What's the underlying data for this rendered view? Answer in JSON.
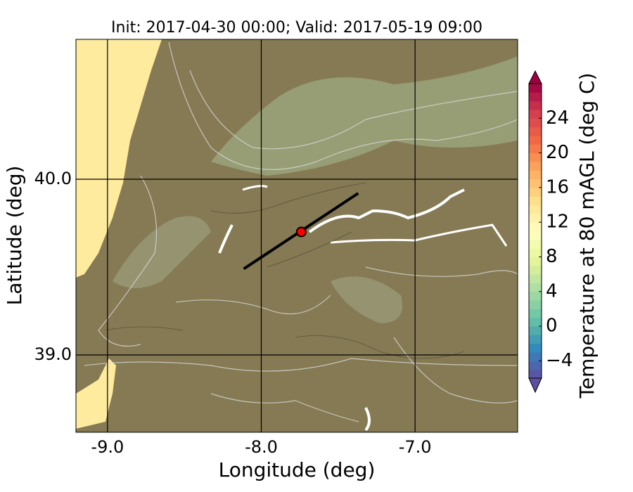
{
  "chart_data": {
    "type": "map",
    "title": "Init: 2017-04-30 00:00; Valid: 2017-05-19 09:00",
    "xlabel": "Longitude (deg)",
    "ylabel": "Latitude (deg)",
    "xlim": [
      -9.205,
      -6.333
    ],
    "ylim": [
      38.56,
      40.796
    ],
    "xticks": [
      {
        "value": -9,
        "label": "-9.0"
      },
      {
        "value": -8,
        "label": "-8.0"
      },
      {
        "value": -7,
        "label": "-7.0"
      }
    ],
    "yticks": [
      {
        "value": 39,
        "label": "39.0"
      },
      {
        "value": 40,
        "label": "40.0"
      }
    ],
    "grid": true,
    "transect": {
      "color": "#000000",
      "lon": [
        -8.114,
        -7.37
      ],
      "lat": [
        39.49,
        39.92
      ]
    },
    "point": {
      "color": "#ff0000",
      "lon": -7.74,
      "lat": 39.7
    },
    "colorbar": {
      "label": "Temperature at 80 mAGL (deg C)",
      "clim": [
        -6,
        28
      ],
      "ticks": [
        {
          "value": -4,
          "label": "−4"
        },
        0,
        4,
        8,
        12,
        16,
        20,
        24
      ],
      "colormap": [
        "#5e4fa2",
        "#3288bd",
        "#66c2a5",
        "#abdda4",
        "#e6f598",
        "#ffffbf",
        "#fee08b",
        "#fdae61",
        "#f46d43",
        "#d53e4f",
        "#9e0142"
      ]
    }
  }
}
